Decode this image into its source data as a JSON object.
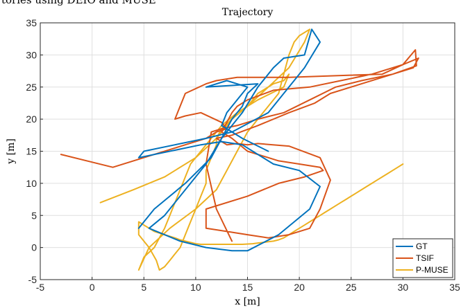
{
  "caption_fragment": "tories using DEIO and MUSE",
  "chart_data": {
    "type": "line",
    "title": "Trajectory",
    "xlabel": "x [m]",
    "ylabel": "y [m]",
    "xlim": [
      -5,
      35
    ],
    "ylim": [
      -5,
      35
    ],
    "xticks": [
      -5,
      0,
      5,
      10,
      15,
      20,
      25,
      30,
      35
    ],
    "yticks": [
      -5,
      0,
      5,
      10,
      15,
      20,
      25,
      30,
      35
    ],
    "grid": true,
    "legend_position": "bottom-right",
    "series": [
      {
        "name": "GT",
        "color": "#0072bd",
        "x": [
          4.5,
          6,
          9,
          11.5,
          12.5,
          13.5,
          14.5,
          16,
          17.5,
          18.5,
          20.5,
          21.2,
          22,
          20.5,
          18.5,
          17,
          13.5,
          11,
          8,
          5,
          4.5,
          7.5,
          10.5,
          12.5,
          14.5,
          16,
          17.5,
          20,
          22,
          21,
          18,
          15,
          13.5,
          11,
          8.5,
          5.5,
          7,
          9,
          11,
          12.5,
          13.5,
          14.5,
          15,
          16,
          11,
          13,
          15,
          14,
          13,
          12.5,
          14.5,
          17
        ],
        "y": [
          3,
          6,
          10,
          14,
          17,
          19,
          21,
          25,
          28,
          29.5,
          30,
          34,
          32,
          28,
          24,
          21,
          18,
          17,
          16,
          15,
          14,
          15,
          16,
          16.5,
          16,
          14.5,
          13,
          12,
          9.5,
          6,
          2,
          -0.5,
          -0.5,
          0,
          1,
          3,
          5,
          9,
          13,
          17,
          20,
          22,
          24,
          25.5,
          25,
          26,
          25,
          23,
          21,
          19,
          17,
          15
        ]
      },
      {
        "name": "TSIF",
        "color": "#d95319",
        "x": [
          -3,
          2,
          6,
          9,
          11,
          12,
          13,
          12.5,
          10.5,
          9,
          8,
          9,
          11,
          12,
          14,
          19,
          24,
          28,
          30,
          31.2,
          31.3,
          29,
          26,
          23,
          21.5,
          19,
          16,
          13.5,
          12,
          13,
          14,
          15,
          16,
          19,
          22,
          23,
          22,
          21,
          19,
          17,
          15,
          13,
          11,
          11,
          15,
          18,
          20.5,
          22.3,
          22,
          20,
          18,
          15,
          13.5,
          12.5,
          13,
          13.5,
          14,
          15,
          17.5,
          21,
          24,
          27,
          30,
          31.5,
          31,
          29,
          26,
          23.5,
          21,
          18.5,
          16,
          14,
          12.5,
          11.5,
          11,
          12,
          13.5
        ],
        "y": [
          14.5,
          12.5,
          14.5,
          16,
          17,
          18,
          18.5,
          19.5,
          21,
          20.5,
          20,
          24,
          25.5,
          26,
          26.5,
          26.5,
          26.8,
          27,
          28.5,
          30.8,
          28.3,
          27,
          25.5,
          24,
          22.5,
          21,
          19,
          17.5,
          17,
          16,
          16.2,
          16,
          16.2,
          15.8,
          14,
          10.5,
          6,
          3,
          2,
          1.5,
          2,
          2.5,
          3,
          6,
          8,
          10,
          11,
          12,
          12.5,
          13,
          13.5,
          15,
          17,
          18,
          19.5,
          21,
          22,
          23,
          24.5,
          25,
          26,
          27,
          28.5,
          29.5,
          28,
          27,
          26,
          25,
          23,
          21,
          20,
          19,
          18.5,
          18,
          13,
          6,
          1
        ]
      },
      {
        "name": "P-MUSE",
        "color": "#edb120",
        "x": [
          0.8,
          4,
          7,
          10,
          12,
          13.5,
          15,
          16,
          17.5,
          18.5,
          19,
          18.5,
          16,
          14,
          12.5,
          11.5,
          10.5,
          9.5,
          9,
          8.5,
          8,
          7.5,
          7,
          6.5,
          6,
          5,
          4.5,
          5.5,
          7.5,
          10,
          12,
          13,
          14,
          15,
          16.5,
          18,
          18.5,
          19,
          19.5,
          20,
          21,
          20.5,
          19,
          17,
          15,
          13.5,
          12.5,
          12,
          12,
          11.5,
          11,
          11,
          10.5,
          10,
          9.5,
          9,
          8.5,
          8,
          7.5,
          7,
          6.5,
          6.2,
          5.5,
          4.5,
          4.5,
          5,
          6,
          7,
          8,
          8.5,
          9,
          9.5,
          10,
          10.5,
          11.5,
          12.5,
          13.5,
          14.5,
          15.5,
          16,
          16.5,
          17,
          17.5,
          18,
          18.5,
          19,
          19.5,
          20,
          20.5,
          21,
          21.5,
          22,
          22.5,
          23,
          23.5,
          24,
          24.5,
          25,
          25.5,
          26,
          26.5,
          27,
          27.5,
          28,
          28.5,
          29,
          29.5,
          30
        ],
        "y": [
          7,
          9,
          11,
          14,
          17,
          20,
          22,
          24,
          25.5,
          26,
          27,
          25,
          23,
          21,
          19,
          17,
          15,
          13,
          11,
          9,
          7,
          5,
          3,
          1.5,
          0,
          -1.5,
          -3.5,
          0,
          3,
          6,
          9,
          12,
          15,
          18,
          21,
          24,
          27,
          30,
          32,
          33,
          34,
          32,
          28,
          25,
          22,
          20,
          18.5,
          17,
          16,
          14,
          12,
          10,
          8,
          6,
          4,
          2,
          0,
          -1,
          -2,
          -3,
          -3.5,
          -2,
          0,
          2,
          4,
          3.5,
          2.5,
          2,
          1.5,
          1.2,
          1,
          0.8,
          0.6,
          0.5,
          0.5,
          0.5,
          0.5,
          0.5,
          0.6,
          0.7,
          0.8,
          0.9,
          1,
          1.2,
          1.5,
          2,
          2.5,
          3,
          3.5,
          4,
          4.5,
          5,
          5.5,
          6,
          6.5,
          7,
          7.5,
          8,
          8.5,
          9,
          9.5,
          10,
          10.5,
          11,
          11.5,
          12,
          12.5,
          13
        ]
      }
    ]
  }
}
